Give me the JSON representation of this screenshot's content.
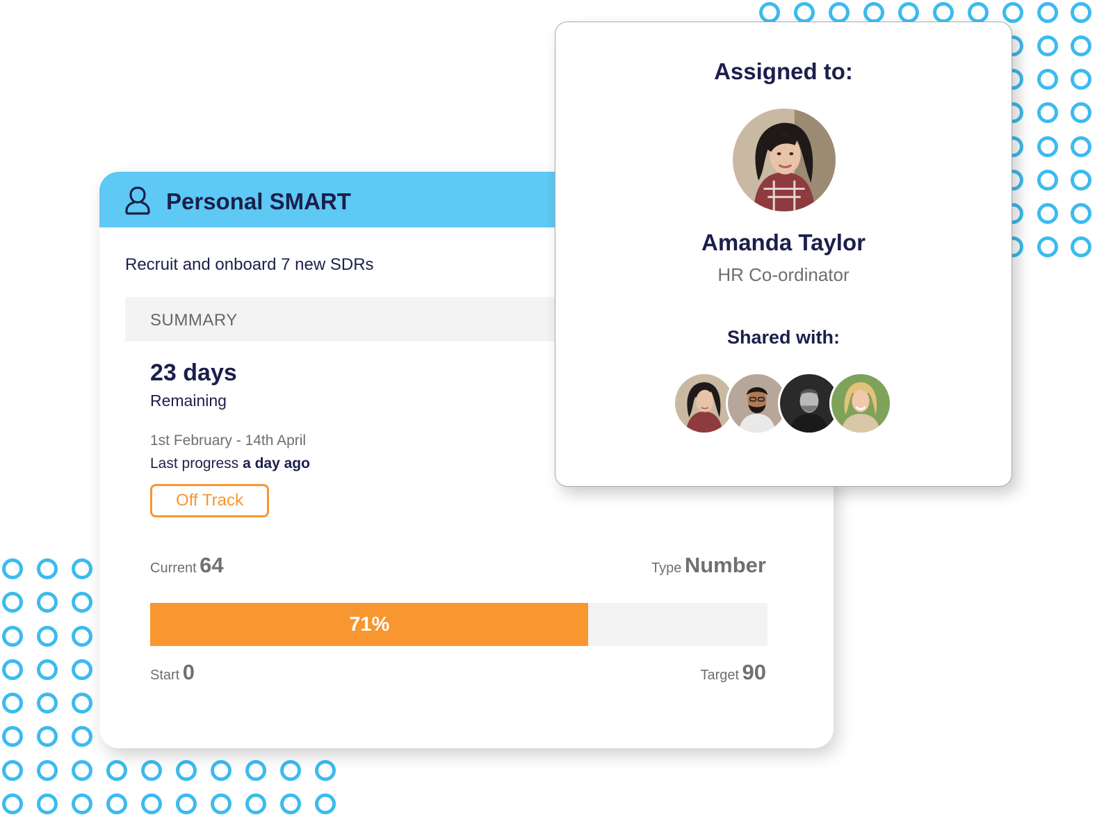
{
  "goal": {
    "title": "Personal SMART",
    "icon": "user-icon",
    "description": "Recruit and onboard 7 new SDRs",
    "summary_label": "SUMMARY",
    "days_value": "23 days",
    "days_label": "Remaining",
    "date_range": "1st February - 14th April",
    "last_progress_prefix": "Last progress ",
    "last_progress_value": "a day ago",
    "status": "Off Track",
    "current_label": "Current",
    "current_value": "64",
    "type_label": "Type",
    "type_value": "Number",
    "start_label": "Start",
    "start_value": "0",
    "target_label": "Target",
    "target_value": "90",
    "progress_text": "71%",
    "progress_fraction": 0.71
  },
  "assignment": {
    "assigned_title": "Assigned to:",
    "person_name": "Amanda Taylor",
    "person_role": "HR Co-ordinator",
    "shared_title": "Shared with:"
  },
  "colors": {
    "header": "#5dc9f4",
    "accent_orange": "#f8962f",
    "navy": "#1b1f4b",
    "dots": "#3cbbee"
  }
}
